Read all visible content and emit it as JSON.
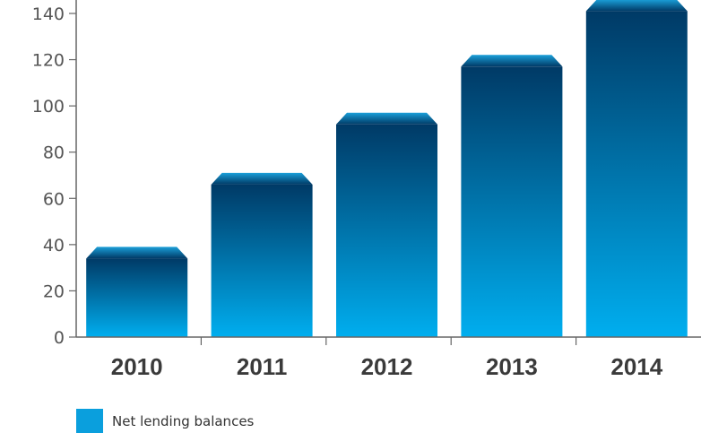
{
  "chart_data": {
    "type": "bar",
    "categories": [
      "2010",
      "2011",
      "2012",
      "2013",
      "2014"
    ],
    "series": [
      {
        "name": "Net lending balances",
        "values": [
          34,
          66,
          92,
          117,
          141
        ]
      }
    ],
    "title": "",
    "xlabel": "",
    "ylabel": "",
    "ylim": [
      0,
      140
    ],
    "yticks": [
      "0",
      "20",
      "40",
      "60",
      "80",
      "100",
      "120",
      "140"
    ],
    "grid": false,
    "legend": "bottom-left",
    "colors": {
      "bar_top": "#003a66",
      "bar_bottom": "#00aeef",
      "cap_light": "#1a9fd9",
      "cap_dark": "#003a66",
      "legend_swatch": "#0a9fdd",
      "axis": "#666666",
      "tick_text": "#555555",
      "category_text": "#3a3a3a"
    }
  },
  "legend": {
    "label": "Net lending balances"
  }
}
